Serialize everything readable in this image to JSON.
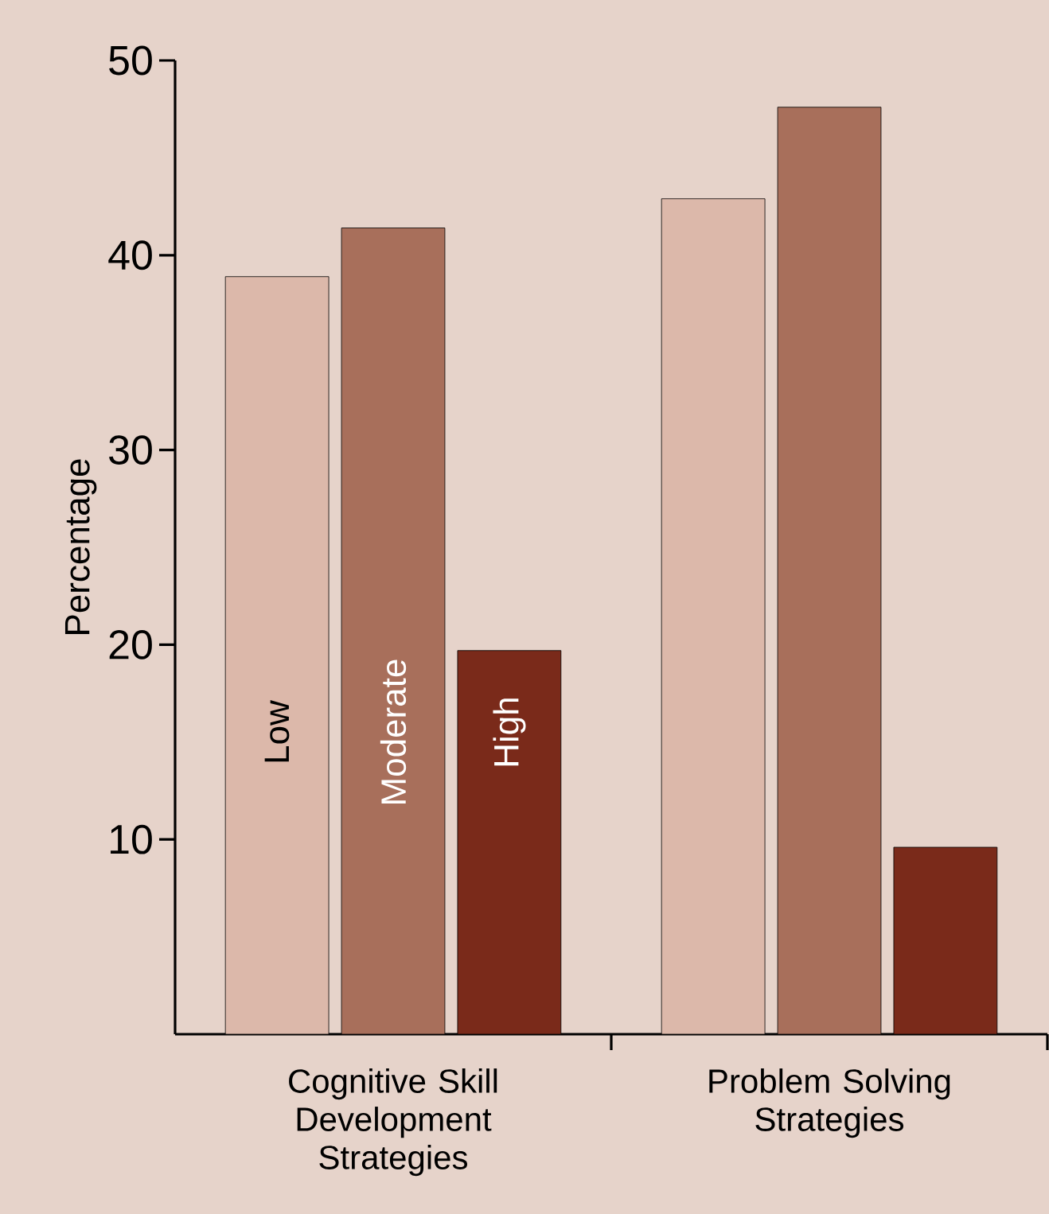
{
  "chart_data": {
    "type": "bar",
    "ylabel": "Percentage",
    "categories": [
      "Cognitive Skill Development Strategies",
      "Problem Solving Strategies"
    ],
    "series": [
      {
        "name": "Low",
        "color": "#dcb8aa",
        "values": [
          38.9,
          42.9
        ]
      },
      {
        "name": "Moderate",
        "color": "#a86f5b",
        "values": [
          41.4,
          47.6
        ]
      },
      {
        "name": "High",
        "color": "#7a2a1a",
        "values": [
          19.7,
          9.6
        ]
      }
    ],
    "ylim": [
      0,
      50
    ],
    "yticks": [
      10,
      20,
      30,
      40,
      50
    ],
    "legend": false
  }
}
